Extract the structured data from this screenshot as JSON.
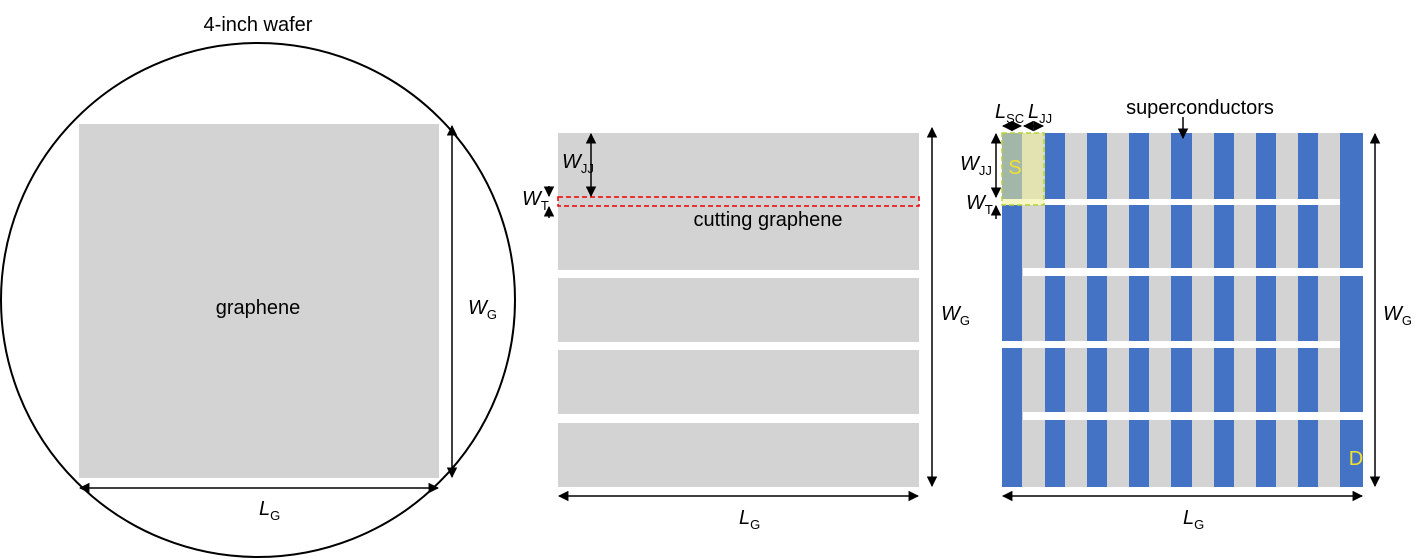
{
  "wafer": {
    "title": "4-inch wafer",
    "region_label": "graphene",
    "width_label": {
      "symbol": "W",
      "subscript": "G"
    },
    "length_label": {
      "symbol": "L",
      "subscript": "G"
    }
  },
  "cutting": {
    "junction_width_label": {
      "symbol": "W",
      "subscript": "JJ"
    },
    "trench_width_label": {
      "symbol": "W",
      "subscript": "T"
    },
    "cut_label": "cutting graphene",
    "width_label": {
      "symbol": "W",
      "subscript": "G"
    },
    "length_label": {
      "symbol": "L",
      "subscript": "G"
    }
  },
  "device": {
    "sc_length_label": {
      "symbol": "L",
      "subscript": "SC"
    },
    "junction_length_label": {
      "symbol": "L",
      "subscript": "JJ"
    },
    "superconductors_label": "superconductors",
    "junction_width_label": {
      "symbol": "W",
      "subscript": "JJ"
    },
    "trench_width_label": {
      "symbol": "W",
      "subscript": "T"
    },
    "source_label": "S",
    "drain_label": "D",
    "width_label": {
      "symbol": "W",
      "subscript": "G"
    },
    "length_label": {
      "symbol": "L",
      "subscript": "G"
    }
  }
}
